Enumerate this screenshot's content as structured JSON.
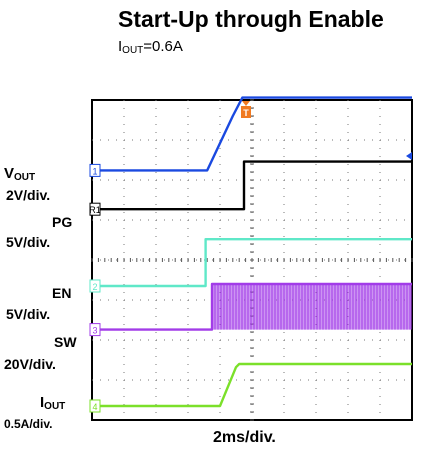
{
  "chart_data": {
    "type": "line",
    "title": "Start-Up through Enable",
    "subtitle": {
      "main": "I",
      "sub": "OUT",
      "rest": "=0.6A"
    },
    "xlabel": "2ms/div.",
    "grid": true,
    "divisions": {
      "x": 10,
      "y": 8
    },
    "trigger_marker": "T",
    "channels": [
      {
        "name": "VOUT",
        "scale": "2V/div.",
        "marker": "1",
        "color": "#1a49e0",
        "points": [
          [
            0,
            6.24
          ],
          [
            3.6,
            6.24
          ],
          [
            4.4,
            7.6
          ],
          [
            4.7,
            8.06
          ],
          [
            10,
            8.06
          ]
        ]
      },
      {
        "name": "PG",
        "scale": "5V/div.",
        "marker": "R1",
        "color": "#000000",
        "points": [
          [
            0,
            5.27
          ],
          [
            4.75,
            5.27
          ],
          [
            4.75,
            6.46
          ],
          [
            10,
            6.46
          ]
        ]
      },
      {
        "name": "EN",
        "scale": "5V/div.",
        "marker": "2",
        "color": "#5fe8c8",
        "points": [
          [
            0,
            3.35
          ],
          [
            3.55,
            3.35
          ],
          [
            3.55,
            4.52
          ],
          [
            10,
            4.52
          ]
        ]
      },
      {
        "name": "SW",
        "scale": "20V/div.",
        "marker": "3",
        "color": "#a23ce8",
        "points": [
          [
            0,
            2.26
          ],
          [
            3.75,
            2.26
          ],
          [
            3.75,
            3.4
          ],
          [
            10,
            3.4
          ]
        ]
      },
      {
        "name": "IOUT",
        "scale": "0.5A/div.",
        "marker": "4",
        "color": "#7be02a",
        "points": [
          [
            0,
            0.35
          ],
          [
            4.0,
            0.35
          ],
          [
            4.5,
            1.32
          ],
          [
            4.6,
            1.4
          ],
          [
            10,
            1.4
          ]
        ]
      }
    ]
  },
  "labels": {
    "vout_main": "V",
    "vout_sub": "OUT",
    "vout_scale": "2V/div.",
    "pg": "PG",
    "pg_scale": "5V/div.",
    "en": "EN",
    "en_scale": "5V/div.",
    "sw": "SW",
    "sw_scale": "20V/div.",
    "iout_main": "I",
    "iout_sub": "OUT",
    "iout_scale": "0.5A/div."
  }
}
